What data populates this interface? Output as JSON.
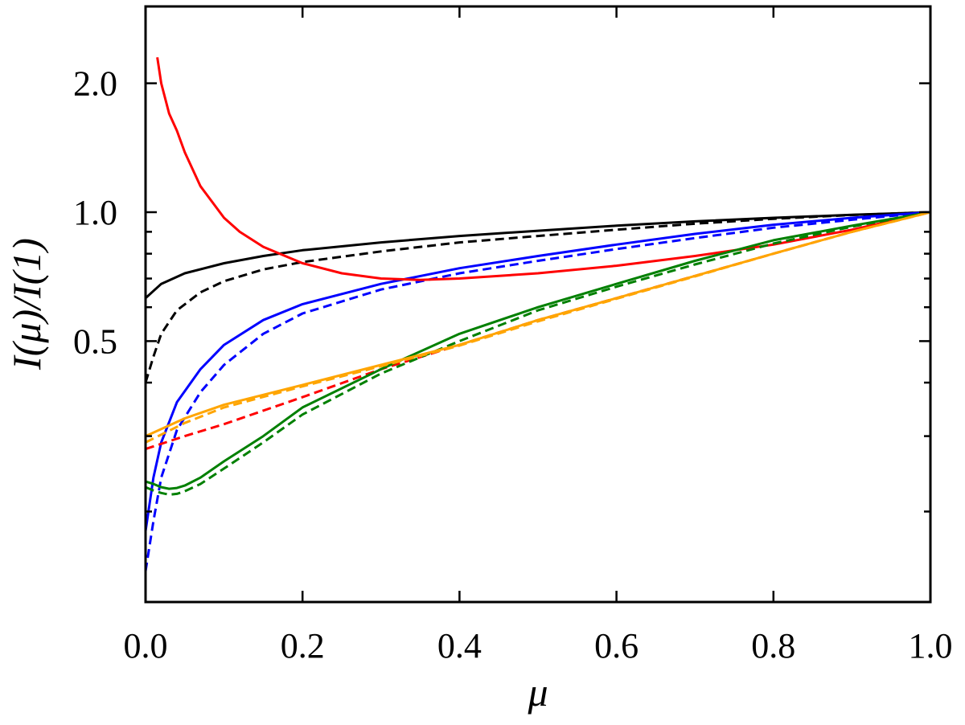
{
  "chart_data": {
    "type": "line",
    "title": "",
    "xlabel": "μ",
    "ylabel": "I(μ)/I(1)",
    "xlim": [
      0.0,
      1.0
    ],
    "ylim": [
      0.0,
      2.3
    ],
    "y_scale": "log",
    "grid": false,
    "x_ticks": [
      0.0,
      0.2,
      0.4,
      0.6,
      0.8,
      1.0
    ],
    "x_tick_labels": [
      "0.0",
      "0.2",
      "0.4",
      "0.6",
      "0.8",
      "1.0"
    ],
    "y_tick_labels": [
      {
        "value": 2.0,
        "label": "2.0"
      },
      {
        "value": 1.0,
        "label": "1.0"
      },
      {
        "value": 0.5,
        "label": "0.5"
      }
    ],
    "y_minor_ticks": [
      0.9,
      0.8,
      0.7,
      0.6,
      0.4,
      0.3,
      0.2
    ],
    "series": [
      {
        "color": "#000000",
        "dash": "solid",
        "x": [
          0.0,
          0.02,
          0.05,
          0.1,
          0.15,
          0.2,
          0.3,
          0.4,
          0.5,
          0.6,
          0.7,
          0.8,
          0.9,
          1.0
        ],
        "y": [
          0.63,
          0.68,
          0.72,
          0.76,
          0.79,
          0.815,
          0.85,
          0.88,
          0.905,
          0.93,
          0.952,
          0.97,
          0.986,
          1.0
        ]
      },
      {
        "color": "#000000",
        "dash": "dashed",
        "x": [
          0.0,
          0.01,
          0.02,
          0.04,
          0.07,
          0.1,
          0.15,
          0.2,
          0.3,
          0.4,
          0.5,
          0.6,
          0.7,
          0.8,
          0.9,
          1.0
        ],
        "y": [
          0.4,
          0.46,
          0.52,
          0.59,
          0.65,
          0.69,
          0.735,
          0.765,
          0.81,
          0.85,
          0.88,
          0.91,
          0.94,
          0.965,
          0.985,
          1.0
        ]
      },
      {
        "color": "#0000ff",
        "dash": "solid",
        "x": [
          0.0,
          0.01,
          0.02,
          0.04,
          0.07,
          0.1,
          0.15,
          0.2,
          0.3,
          0.4,
          0.5,
          0.6,
          0.7,
          0.8,
          0.9,
          1.0
        ],
        "y": [
          0.18,
          0.24,
          0.29,
          0.36,
          0.43,
          0.49,
          0.56,
          0.61,
          0.68,
          0.74,
          0.79,
          0.84,
          0.89,
          0.935,
          0.97,
          1.0
        ]
      },
      {
        "color": "#0000ff",
        "dash": "dashed",
        "x": [
          0.0,
          0.01,
          0.02,
          0.04,
          0.07,
          0.1,
          0.15,
          0.2,
          0.3,
          0.4,
          0.5,
          0.6,
          0.7,
          0.8,
          0.9,
          1.0
        ],
        "y": [
          0.145,
          0.19,
          0.24,
          0.31,
          0.38,
          0.44,
          0.52,
          0.58,
          0.66,
          0.72,
          0.77,
          0.82,
          0.87,
          0.92,
          0.96,
          1.0
        ]
      },
      {
        "color": "#ff0000",
        "dash": "solid",
        "x": [
          0.015,
          0.02,
          0.03,
          0.04,
          0.05,
          0.07,
          0.1,
          0.12,
          0.15,
          0.2,
          0.25,
          0.3,
          0.35,
          0.4,
          0.5,
          0.6,
          0.7,
          0.8,
          0.9,
          1.0
        ],
        "y": [
          2.3,
          2.0,
          1.7,
          1.55,
          1.38,
          1.15,
          0.97,
          0.9,
          0.83,
          0.76,
          0.72,
          0.7,
          0.695,
          0.7,
          0.72,
          0.75,
          0.79,
          0.84,
          0.91,
          1.0
        ]
      },
      {
        "color": "#ff0000",
        "dash": "dashed",
        "x": [
          0.0,
          0.05,
          0.1,
          0.2,
          0.3,
          0.4,
          0.5,
          0.6,
          0.7,
          0.8,
          0.9,
          1.0
        ],
        "y": [
          0.28,
          0.3,
          0.32,
          0.37,
          0.43,
          0.49,
          0.56,
          0.63,
          0.71,
          0.8,
          0.9,
          1.0
        ]
      },
      {
        "color": "#008000",
        "dash": "solid",
        "x": [
          0.0,
          0.01,
          0.02,
          0.03,
          0.04,
          0.05,
          0.07,
          0.1,
          0.15,
          0.2,
          0.3,
          0.4,
          0.5,
          0.6,
          0.7,
          0.8,
          0.9,
          1.0
        ],
        "y": [
          0.235,
          0.232,
          0.228,
          0.226,
          0.227,
          0.23,
          0.24,
          0.262,
          0.3,
          0.35,
          0.43,
          0.52,
          0.6,
          0.68,
          0.77,
          0.86,
          0.93,
          1.0
        ]
      },
      {
        "color": "#008000",
        "dash": "dashed",
        "x": [
          0.0,
          0.01,
          0.02,
          0.03,
          0.04,
          0.05,
          0.07,
          0.1,
          0.15,
          0.2,
          0.3,
          0.4,
          0.5,
          0.6,
          0.7,
          0.8,
          0.9,
          1.0
        ],
        "y": [
          0.228,
          0.224,
          0.221,
          0.219,
          0.22,
          0.223,
          0.232,
          0.252,
          0.29,
          0.337,
          0.42,
          0.5,
          0.59,
          0.67,
          0.755,
          0.845,
          0.925,
          1.0
        ]
      },
      {
        "color": "#ffa500",
        "dash": "solid",
        "x": [
          0.0,
          0.05,
          0.1,
          0.2,
          0.3,
          0.4,
          0.5,
          0.6,
          0.7,
          0.8,
          0.9,
          1.0
        ],
        "y": [
          0.3,
          0.33,
          0.355,
          0.395,
          0.44,
          0.49,
          0.56,
          0.63,
          0.71,
          0.8,
          0.9,
          1.0
        ]
      },
      {
        "color": "#ffa500",
        "dash": "dashed",
        "x": [
          0.0,
          0.05,
          0.1,
          0.2,
          0.3,
          0.4,
          0.5,
          0.6,
          0.7,
          0.8,
          0.9,
          1.0
        ],
        "y": [
          0.29,
          0.322,
          0.35,
          0.392,
          0.437,
          0.488,
          0.556,
          0.628,
          0.708,
          0.8,
          0.9,
          1.0
        ]
      }
    ]
  }
}
